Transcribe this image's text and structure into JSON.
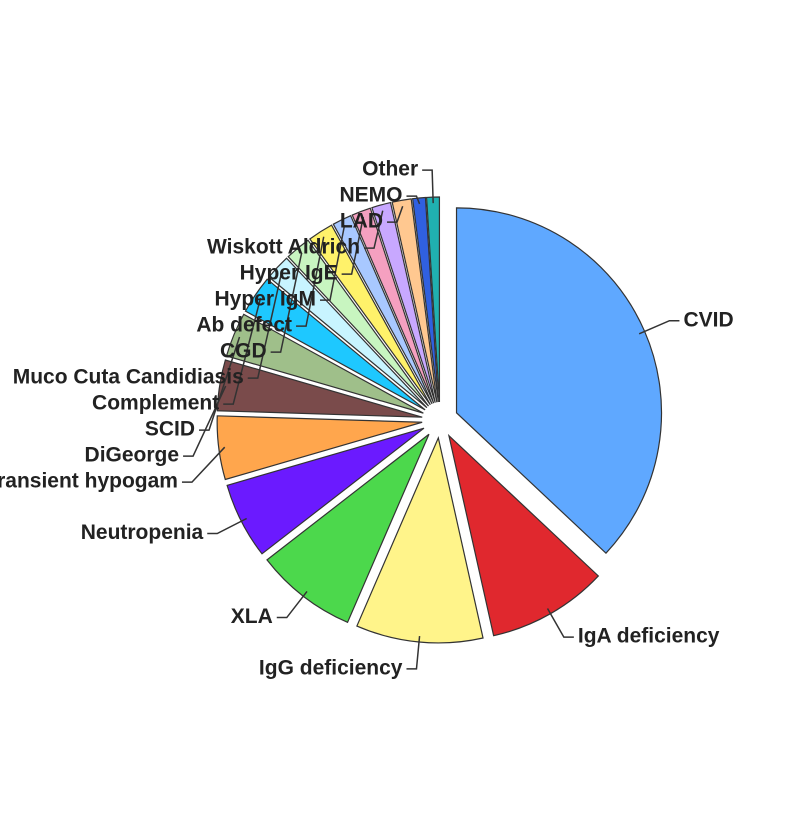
{
  "chart_data": {
    "type": "pie",
    "categories": [
      "CVID",
      "IgA deficiency",
      "IgG deficiency",
      "XLA",
      "Neutropenia",
      "Transient hypogam",
      "DiGeorge",
      "SCID",
      "Complement",
      "Muco Cuta Candidiasis",
      "CGD",
      "Ab defect",
      "Hyper IgM",
      "Hyper IgE",
      "Wiskott Aldrich",
      "LAD",
      "NEMO",
      "Other"
    ],
    "values": [
      37,
      9.5,
      10,
      8,
      6,
      5,
      4,
      3.5,
      3,
      2,
      2,
      2,
      1.5,
      1.5,
      1.5,
      1.5,
      1,
      1
    ],
    "colors": [
      "#5fa8ff",
      "#e0282e",
      "#fff48a",
      "#4cd84c",
      "#6b1aff",
      "#ffa64d",
      "#7a4b4b",
      "#9fbf8a",
      "#1ec8ff",
      "#c8f4ff",
      "#c8f5c0",
      "#fff26a",
      "#a8c8ff",
      "#f5a0c0",
      "#c8a8ff",
      "#ffc890",
      "#3060e0",
      "#20b0b0"
    ]
  }
}
